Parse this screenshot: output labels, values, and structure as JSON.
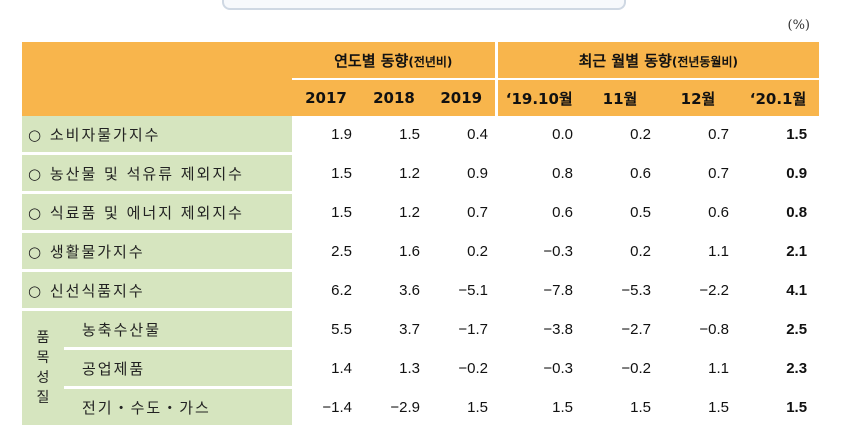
{
  "unit": "(%)",
  "header": {
    "group_yearly": "연도별 동향",
    "group_yearly_note": "(전년비)",
    "group_monthly": "최근 월별 동향",
    "group_monthly_note": "(전년동월비)",
    "columns": [
      "2017",
      "2018",
      "2019",
      "‘19.10월",
      "11월",
      "12월",
      "‘20.1월"
    ]
  },
  "rows": [
    {
      "label": "○ 소비자물가지수",
      "values": [
        "1.9",
        "1.5",
        "0.4",
        "0.0",
        "0.2",
        "0.7",
        "1.5"
      ]
    },
    {
      "label": "○ 농산물 및 석유류 제외지수",
      "values": [
        "1.5",
        "1.2",
        "0.9",
        "0.8",
        "0.6",
        "0.7",
        "0.9"
      ]
    },
    {
      "label": "○ 식료품 및 에너지 제외지수",
      "values": [
        "1.5",
        "1.2",
        "0.7",
        "0.6",
        "0.5",
        "0.6",
        "0.8"
      ]
    },
    {
      "label": "○ 생활물가지수",
      "values": [
        "2.5",
        "1.6",
        "0.2",
        "−0.3",
        "0.2",
        "1.1",
        "2.1"
      ]
    },
    {
      "label": "○ 신선식품지수",
      "values": [
        "6.2",
        "3.6",
        "−5.1",
        "−7.8",
        "−5.3",
        "−2.2",
        "4.1"
      ]
    }
  ],
  "group": {
    "label_chars": [
      "품",
      "목",
      "성",
      "질"
    ],
    "rows": [
      {
        "label": "농축수산물",
        "values": [
          "5.5",
          "3.7",
          "−1.7",
          "−3.8",
          "−2.7",
          "−0.8",
          "2.5"
        ]
      },
      {
        "label": "공업제품",
        "values": [
          "1.4",
          "1.3",
          "−0.2",
          "−0.3",
          "−0.2",
          "1.1",
          "2.3"
        ]
      },
      {
        "label": "전기・수도・가스",
        "values": [
          "−1.4",
          "−2.9",
          "1.5",
          "1.5",
          "1.5",
          "1.5",
          "1.5"
        ]
      }
    ]
  }
}
